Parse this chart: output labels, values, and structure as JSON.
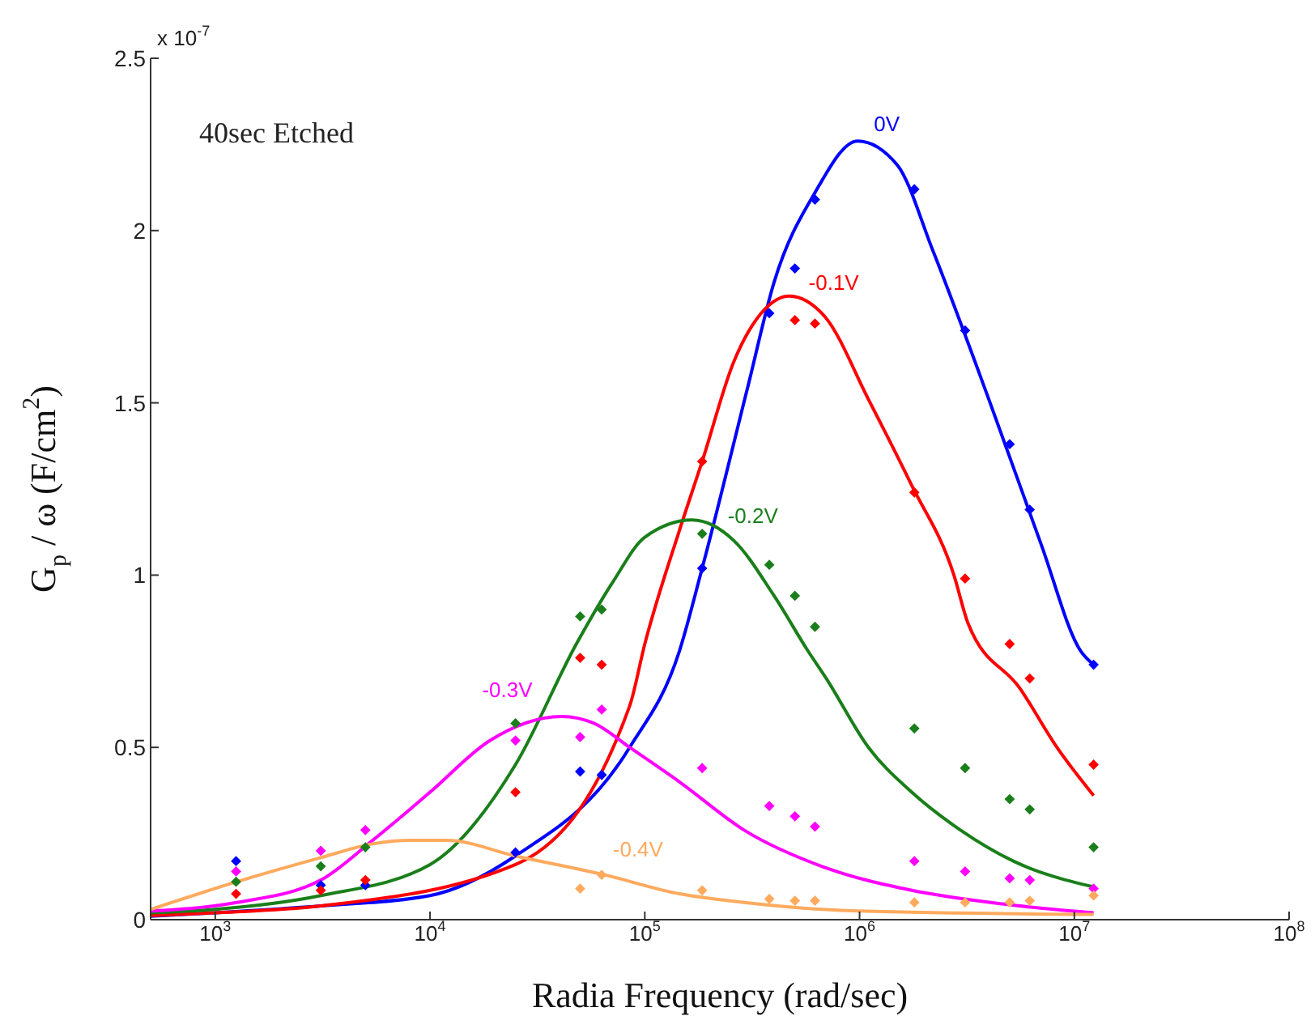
{
  "chart_data": {
    "type": "scatter",
    "xlabel": "Radia Frequency (rad/sec)",
    "ylabel": "G$_{p}$ / ω (F/cm$^{2}$)",
    "log": "x",
    "xlim": [
      500,
      100000000
    ],
    "xticks": [
      {
        "value": 1000,
        "label": "10$^{3}$"
      },
      {
        "value": 10000,
        "label": "10$^{4}$"
      },
      {
        "value": 100000,
        "label": "10$^{5}$"
      },
      {
        "value": 1000000,
        "label": "10$^{6}$"
      },
      {
        "value": 10000000,
        "label": "10$^{7}$"
      },
      {
        "value": 100000000,
        "label": "10$^{8}$"
      }
    ],
    "ylim": [
      0,
      2.5
    ],
    "yticks": [
      0,
      0.5,
      1,
      1.5,
      2,
      2.5
    ],
    "annotations": [
      "x 10$^{-7}$",
      "40sec Etched"
    ],
    "series": [
      {
        "marker": "diamond",
        "color": "#0000ff",
        "x": [
          1250,
          3100,
          5000,
          25000,
          50000,
          63000,
          185000,
          380000,
          500000,
          620000,
          1800000,
          3100000,
          5000000,
          6200000,
          12300000
        ],
        "values": [
          0.17,
          0.1,
          0.1,
          0.195,
          0.43,
          0.42,
          1.02,
          1.76,
          1.89,
          2.09,
          2.12,
          1.71,
          1.38,
          1.19,
          0.74
        ]
      },
      {
        "marker": "diamond",
        "color": "#ff0000",
        "x": [
          1250,
          3100,
          5000,
          25000,
          50000,
          63000,
          185000,
          380000,
          500000,
          620000,
          1800000,
          3100000,
          5000000,
          6200000,
          12300000
        ],
        "values": [
          0.075,
          0.085,
          0.115,
          0.37,
          0.76,
          0.74,
          1.33,
          null,
          1.74,
          1.73,
          1.24,
          0.99,
          0.8,
          0.7,
          0.45
        ]
      },
      {
        "marker": "diamond",
        "color": "#1a7f1a",
        "x": [
          1250,
          3100,
          5000,
          25000,
          50000,
          63000,
          185000,
          380000,
          500000,
          620000,
          1800000,
          3100000,
          5000000,
          6200000,
          12300000
        ],
        "values": [
          0.11,
          0.155,
          0.21,
          0.57,
          0.88,
          0.9,
          1.12,
          1.03,
          0.94,
          0.85,
          0.555,
          0.44,
          0.35,
          0.32,
          0.21
        ]
      },
      {
        "marker": "diamond",
        "color": "#ff00ff",
        "x": [
          1250,
          3100,
          5000,
          25000,
          50000,
          63000,
          185000,
          380000,
          500000,
          620000,
          1800000,
          3100000,
          5000000,
          6200000,
          12300000
        ],
        "values": [
          0.14,
          0.2,
          0.26,
          0.52,
          0.53,
          0.61,
          0.44,
          0.33,
          0.3,
          0.27,
          0.17,
          0.14,
          0.12,
          0.115,
          0.09
        ]
      },
      {
        "marker": "diamond",
        "color": "#ffaa5e",
        "x": [
          50000,
          63000,
          185000,
          380000,
          500000,
          620000,
          1800000,
          3100000,
          5000000,
          6200000,
          12300000
        ],
        "values": [
          0.09,
          0.13,
          0.085,
          0.06,
          0.055,
          0.055,
          0.05,
          0.05,
          0.05,
          0.055,
          0.07
        ]
      },
      {
        "type": "line",
        "name": "0V",
        "color": "#0000ff",
        "x": [
          500,
          1000,
          3100,
          10000,
          25000,
          85000,
          145000,
          185000,
          300000,
          400000,
          620000,
          980000,
          1500000,
          2200000,
          4000000,
          7000000,
          10700000,
          12300000
        ],
        "values": [
          0.01,
          0.02,
          0.04,
          0.07,
          0.185,
          0.5,
          0.78,
          1.02,
          1.54,
          1.85,
          2.11,
          2.26,
          2.19,
          1.94,
          1.51,
          1.09,
          0.78,
          0.74
        ]
      },
      {
        "type": "line",
        "name": "-0.1V",
        "color": "#ff0000",
        "x": [
          500,
          1000,
          3100,
          25000,
          85000,
          100000,
          145000,
          185000,
          260000,
          360000,
          470000,
          690000,
          1100000,
          1750000,
          2750000,
          3200000,
          5600000,
          8300000,
          12300000
        ],
        "values": [
          0.012,
          0.02,
          0.04,
          0.16,
          0.62,
          0.8,
          1.13,
          1.33,
          1.62,
          1.77,
          1.81,
          1.75,
          1.51,
          1.26,
          1.0,
          0.86,
          0.67,
          0.5,
          0.36
        ]
      },
      {
        "type": "line",
        "name": "-0.2V",
        "color": "#1a7f1a",
        "x": [
          500,
          1000,
          3100,
          10000,
          25000,
          48000,
          71000,
          100000,
          166000,
          260000,
          400000,
          575000,
          700000,
          1100000,
          1750000,
          2950000,
          5200000,
          12300000
        ],
        "values": [
          0.02,
          0.03,
          0.07,
          0.16,
          0.45,
          0.8,
          0.98,
          1.11,
          1.16,
          1.1,
          0.94,
          0.78,
          0.7,
          0.5,
          0.37,
          0.26,
          0.17,
          0.095
        ]
      },
      {
        "type": "line",
        "name": "-0.3V",
        "color": "#ff00ff",
        "x": [
          500,
          1260,
          3100,
          5400,
          10000,
          19000,
          41000,
          58000,
          85000,
          145000,
          290000,
          700000,
          1750000,
          4700000,
          12300000
        ],
        "values": [
          0.025,
          0.05,
          0.115,
          0.23,
          0.37,
          0.52,
          0.59,
          0.57,
          0.5,
          0.4,
          0.26,
          0.15,
          0.085,
          0.045,
          0.02
        ]
      },
      {
        "type": "line",
        "name": "-0.4V",
        "color": "#ffaa5e",
        "x": [
          500,
          1260,
          3100,
          5400,
          8100,
          12000,
          25000,
          65000,
          145000,
          290000,
          980000,
          12300000
        ],
        "values": [
          0.03,
          0.11,
          0.18,
          0.22,
          0.23,
          0.23,
          0.185,
          0.13,
          0.075,
          0.05,
          0.025,
          0.015
        ]
      }
    ]
  }
}
